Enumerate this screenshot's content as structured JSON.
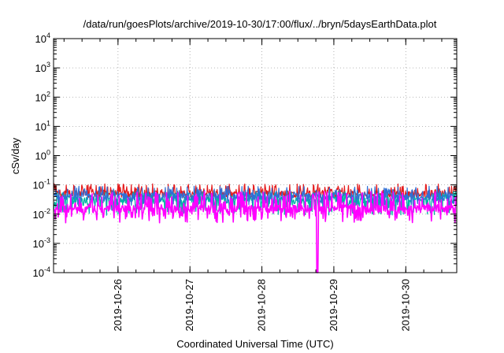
{
  "chart_data": {
    "type": "line",
    "title": "/data/run/goesPlots/archive/2019-10-30/17:00/flux/../bryn/5daysEarthData.plot",
    "xlabel": "Coordinated Universal Time (UTC)",
    "ylabel": "cSv/day",
    "y_scale": "log",
    "ylim": [
      0.0001,
      10000
    ],
    "xlim": [
      "2019-10-25T02:30",
      "2019-10-30T17:00"
    ],
    "grid": true,
    "y_ticks": [
      {
        "value": 0.0001,
        "base": "10",
        "exp": "-4"
      },
      {
        "value": 0.001,
        "base": "10",
        "exp": "-3"
      },
      {
        "value": 0.01,
        "base": "10",
        "exp": "-2"
      },
      {
        "value": 0.1,
        "base": "10",
        "exp": "-1"
      },
      {
        "value": 1,
        "base": "10",
        "exp": "0"
      },
      {
        "value": 10,
        "base": "10",
        "exp": "1"
      },
      {
        "value": 100,
        "base": "10",
        "exp": "2"
      },
      {
        "value": 1000,
        "base": "10",
        "exp": "3"
      },
      {
        "value": 10000,
        "base": "10",
        "exp": "4"
      }
    ],
    "x_ticks": [
      "2019-10-26",
      "2019-10-27",
      "2019-10-28",
      "2019-10-29",
      "2019-10-30"
    ],
    "series": [
      {
        "color": "#e41a1c",
        "baseline": 0.05,
        "spike_max": 0.11,
        "dip_min": 0.035
      },
      {
        "color": "#00b3a4",
        "baseline": 0.03,
        "spike_max": 0.06,
        "dip_min": 0.009
      },
      {
        "color": "#2f6fd6",
        "baseline": 0.04,
        "spike_max": 0.09,
        "dip_min": 0.02
      },
      {
        "color": "#ff00ff",
        "baseline": 0.015,
        "spike_max": 0.06,
        "dip_min": 0.005,
        "drop_at": "2019-10-28T18:30",
        "drop_value": 0.0001
      }
    ]
  }
}
